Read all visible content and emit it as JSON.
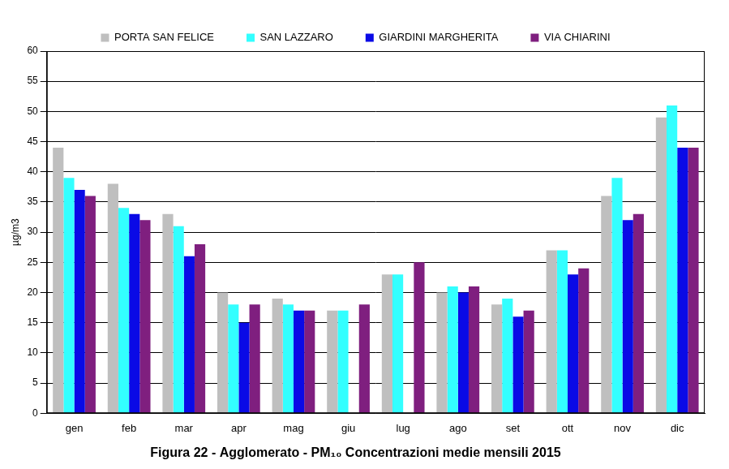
{
  "chart_data": {
    "type": "bar",
    "title": "Figura 22 - Agglomerato - PM₁₀ Concentrazioni medie mensili 2015",
    "y_label": "µg/m3",
    "categories": [
      "gen",
      "feb",
      "mar",
      "apr",
      "mag",
      "giu",
      "lug",
      "ago",
      "set",
      "ott",
      "nov",
      "dic"
    ],
    "series": [
      {
        "name": "PORTA SAN FELICE",
        "color": "#bfbfbf",
        "values": [
          44,
          38,
          33,
          20,
          19,
          17,
          23,
          20,
          18,
          27,
          36,
          49
        ]
      },
      {
        "name": "SAN LAZZARO",
        "color": "#33ffff",
        "values": [
          39,
          34,
          31,
          18,
          18,
          17,
          23,
          21,
          19,
          27,
          39,
          51
        ]
      },
      {
        "name": "GIARDINI MARGHERITA",
        "color": "#0a0ae6",
        "values": [
          37,
          33,
          26,
          15,
          17,
          null,
          null,
          20,
          16,
          23,
          32,
          44
        ]
      },
      {
        "name": "VIA CHIARINI",
        "color": "#7f1f7f",
        "values": [
          36,
          32,
          28,
          18,
          17,
          18,
          25,
          21,
          17,
          24,
          33,
          44
        ]
      }
    ],
    "ylim": [
      0,
      60
    ],
    "yticks": [
      0,
      5,
      10,
      15,
      20,
      25,
      30,
      35,
      40,
      45,
      50,
      55,
      60
    ],
    "grid": true,
    "legend": "top"
  }
}
